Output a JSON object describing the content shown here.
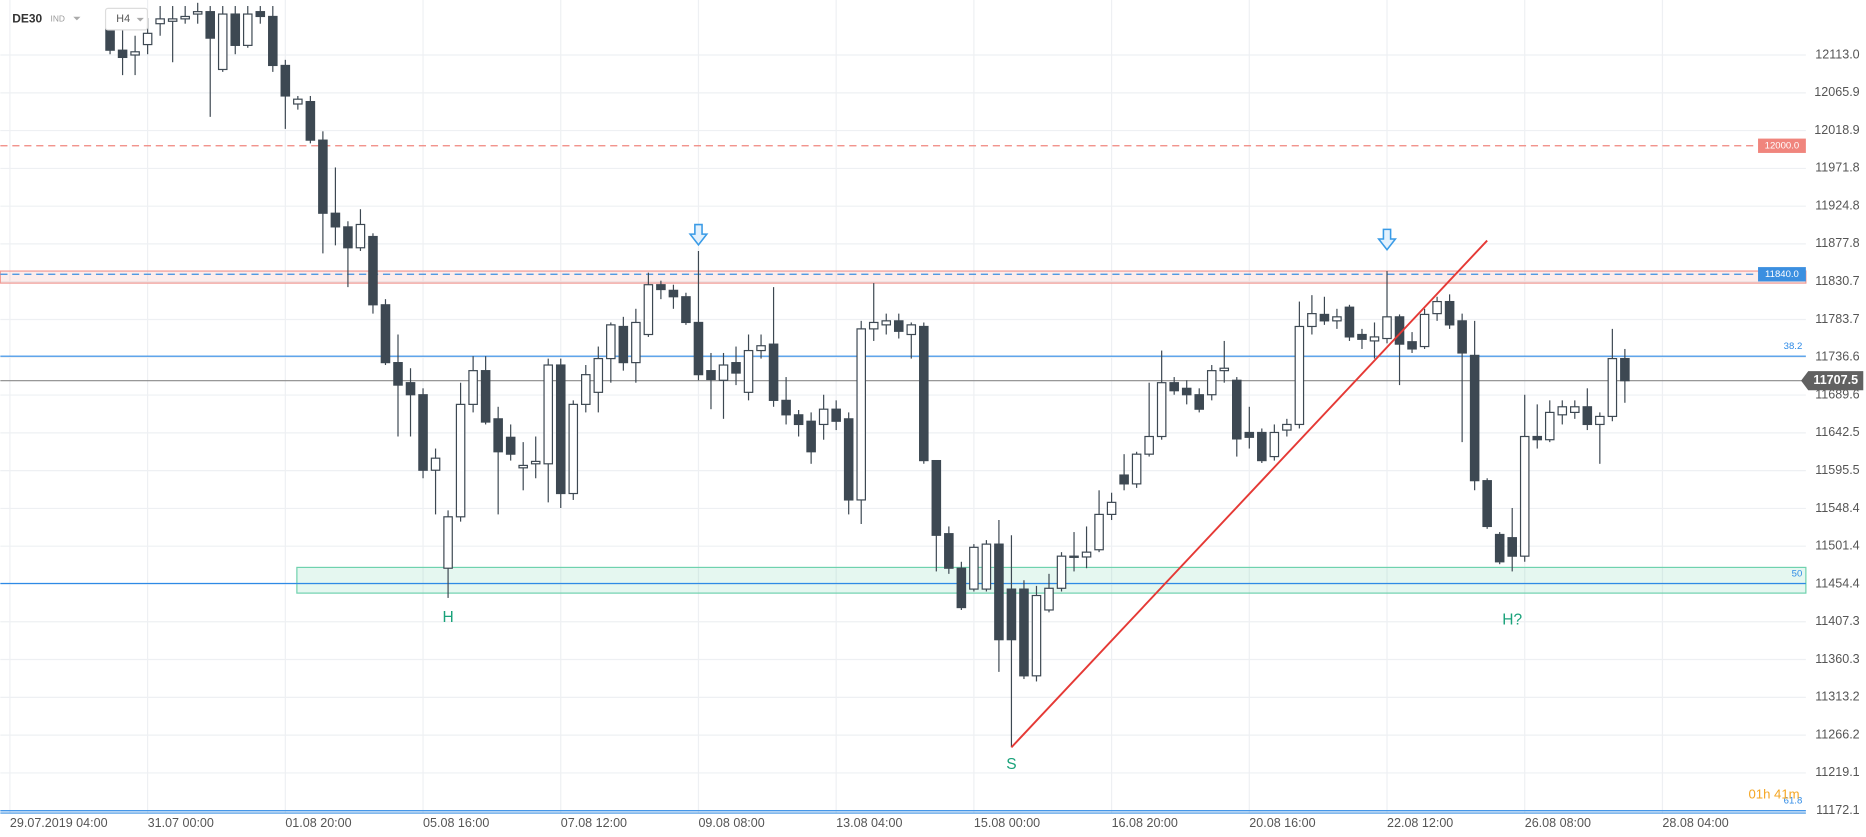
{
  "chart_data": {
    "type": "candlestick",
    "symbol": "DE30",
    "instrument_type": "IND",
    "timeframe": "H4",
    "up_color": "#ffffff",
    "down_color": "#3d4852",
    "grid": true,
    "categories": [
      "29.07.2019 04:00",
      null,
      null,
      null,
      null,
      null,
      null,
      null,
      null,
      null,
      null,
      "31.07 00:00",
      null,
      null,
      null,
      null,
      null,
      null,
      null,
      null,
      null,
      null,
      "01.08 20:00",
      null,
      null,
      null,
      null,
      null,
      null,
      null,
      null,
      null,
      null,
      "05.08 16:00",
      null,
      null,
      null,
      null,
      null,
      null,
      null,
      null,
      null,
      null,
      "07.08 12:00",
      null,
      null,
      null,
      null,
      null,
      null,
      null,
      null,
      null,
      null,
      "09.08 08:00",
      null,
      null,
      null,
      null,
      null,
      null,
      null,
      null,
      null,
      null,
      "13.08 04:00",
      null,
      null,
      null,
      null,
      null,
      null,
      null,
      null,
      null,
      null,
      "15.08 00:00",
      null,
      null,
      null,
      null,
      null,
      null,
      null,
      null,
      null,
      null,
      "16.08 20:00",
      null,
      null,
      null,
      null,
      null,
      null,
      null,
      null,
      null,
      null,
      "20.08 16:00",
      null,
      null,
      null,
      null,
      null,
      null,
      null,
      null,
      null,
      null,
      "22.08 12:00",
      null,
      null,
      null,
      null,
      null,
      null,
      null,
      null,
      null,
      null,
      "26.08 08:00",
      null,
      null,
      null,
      null,
      null,
      null,
      null,
      null,
      null,
      null,
      "28.08 04:00"
    ],
    "open": [
      null,
      null,
      null,
      null,
      null,
      null,
      null,
      null,
      12159,
      12119,
      12113,
      12126,
      12152,
      12155,
      12158,
      12164,
      12167,
      12095,
      12164,
      12125,
      12167,
      12161,
      12100,
      12052,
      12055,
      12007,
      11916,
      11899,
      11873,
      11887,
      11802,
      11730,
      11705,
      11690,
      11596,
      11474,
      11538,
      11678,
      11720,
      11660,
      11637,
      11599,
      11604,
      11604,
      11727,
      11567,
      11678,
      11693,
      11735,
      11775,
      11730,
      11765,
      11827,
      11820,
      11812,
      11780,
      11720,
      11708,
      11730,
      11693,
      11745,
      11753,
      11683,
      11665,
      11657,
      11653,
      11672,
      11660,
      11559,
      11772,
      11777,
      11782,
      11765,
      11775,
      11608,
      11517,
      11474,
      11448,
      11448,
      11504,
      11448,
      11448,
      11340,
      11422,
      11449,
      11489,
      11488,
      11497,
      11541,
      11590,
      11579,
      11616,
      11638,
      11705,
      11698,
      11690,
      11690,
      11720,
      11708,
      11643,
      11643,
      11613,
      11646,
      11653,
      11775,
      11790,
      11782,
      11799,
      11765,
      11757,
      11760,
      11787,
      11756,
      11750,
      11791,
      11806,
      11782,
      11739,
      11583,
      11516,
      11512,
      11489,
      11638,
      11634,
      11665,
      11668,
      11675,
      11653,
      11663,
      11735,
      null,
      null,
      null
    ],
    "high": [
      null,
      null,
      null,
      null,
      null,
      null,
      null,
      null,
      12167,
      12159,
      12137,
      12159,
      12174,
      12174,
      12174,
      12178,
      12174,
      12174,
      12174,
      12174,
      12174,
      12174,
      12107,
      12062,
      12062,
      12018,
      11973,
      11906,
      11921,
      11891,
      11809,
      11765,
      11723,
      11698,
      11623,
      11546,
      11705,
      11738,
      11738,
      11675,
      11653,
      11631,
      11638,
      11735,
      11735,
      11683,
      11727,
      11750,
      11780,
      11787,
      11797,
      11842,
      11832,
      11827,
      11817,
      11869,
      11742,
      11742,
      11750,
      11765,
      11765,
      11824,
      11712,
      11671,
      11668,
      11690,
      11683,
      11668,
      11782,
      11829,
      11791,
      11791,
      11780,
      11780,
      11608,
      11526,
      11482,
      11504,
      11509,
      11534,
      11515,
      11459,
      11452,
      11467,
      11494,
      11519,
      11526,
      11571,
      11568,
      11616,
      11619,
      11705,
      11745,
      11712,
      11708,
      11698,
      11727,
      11757,
      11712,
      11675,
      11648,
      11653,
      11660,
      11806,
      11814,
      11812,
      11797,
      11802,
      11772,
      11780,
      11844,
      11790,
      11768,
      11797,
      11812,
      11815,
      11791,
      11782,
      11586,
      11519,
      11549,
      11690,
      11678,
      11683,
      11683,
      11683,
      11698,
      11668,
      11772,
      11747,
      null,
      null,
      null
    ],
    "low": [
      null,
      null,
      null,
      null,
      null,
      null,
      null,
      null,
      12114,
      12088,
      12088,
      12114,
      12137,
      12104,
      12152,
      12152,
      12036,
      12092,
      12114,
      12122,
      12152,
      12092,
      12021,
      12045,
      12003,
      11866,
      11876,
      11824,
      11869,
      11791,
      11727,
      11638,
      11638,
      11586,
      11541,
      11437,
      11532,
      11668,
      11653,
      11541,
      11608,
      11571,
      11586,
      11556,
      11549,
      11559,
      11668,
      11668,
      11705,
      11720,
      11705,
      11762,
      11809,
      11797,
      11777,
      11708,
      11672,
      11660,
      11702,
      11683,
      11735,
      11675,
      11653,
      11638,
      11604,
      11634,
      11646,
      11541,
      11529,
      11757,
      11765,
      11760,
      11735,
      11604,
      11470,
      11467,
      11422,
      11445,
      11445,
      11345,
      11251,
      11336,
      11333,
      11419,
      11445,
      11470,
      11474,
      11494,
      11534,
      11571,
      11574,
      11613,
      11634,
      11690,
      11678,
      11668,
      11683,
      11705,
      11613,
      11623,
      11605,
      11608,
      11638,
      11648,
      11765,
      11777,
      11772,
      11757,
      11747,
      11735,
      11754,
      11702,
      11742,
      11747,
      11782,
      11772,
      11631,
      11571,
      11523,
      11479,
      11470,
      11482,
      11623,
      11631,
      11653,
      11660,
      11646,
      11604,
      11657,
      11680,
      null,
      null,
      null
    ],
    "close": [
      null,
      null,
      null,
      null,
      null,
      null,
      null,
      null,
      12119,
      12110,
      12117,
      12140,
      12158,
      12158,
      12161,
      12167,
      12134,
      12164,
      12125,
      12164,
      12161,
      12100,
      12062,
      12058,
      12007,
      11916,
      11899,
      11873,
      11902,
      11802,
      11730,
      11702,
      11690,
      11596,
      11611,
      11538,
      11678,
      11720,
      11656,
      11619,
      11616,
      11602,
      11607,
      11727,
      11567,
      11678,
      11715,
      11735,
      11777,
      11730,
      11780,
      11827,
      11821,
      11812,
      11780,
      11715,
      11709,
      11727,
      11717,
      11745,
      11751,
      11683,
      11665,
      11653,
      11619,
      11672,
      11657,
      11559,
      11772,
      11780,
      11782,
      11769,
      11777,
      11608,
      11515,
      11474,
      11425,
      11500,
      11504,
      11385,
      11385,
      11340,
      11440,
      11449,
      11489,
      11488,
      11494,
      11541,
      11556,
      11579,
      11616,
      11638,
      11705,
      11695,
      11690,
      11672,
      11720,
      11723,
      11635,
      11637,
      11608,
      11643,
      11653,
      11775,
      11791,
      11782,
      11787,
      11762,
      11759,
      11762,
      11787,
      11753,
      11747,
      11790,
      11806,
      11777,
      11742,
      11583,
      11526,
      11482,
      11489,
      11638,
      11634,
      11668,
      11675,
      11675,
      11653,
      11663,
      11735,
      11707.5,
      null,
      null,
      null
    ],
    "ylim": [
      11169.1,
      12181.5
    ],
    "yticks": [
      {
        "value": 12113,
        "label": "12113.0"
      },
      12065.9,
      12018.9,
      11971.8,
      11924.8,
      11877.8,
      11830.7,
      11783.7,
      11736.6,
      11689.6,
      11642.5,
      11595.5,
      11548.4,
      11501.4,
      11454.4,
      11407.3,
      11360.3,
      11313.2,
      11266.2,
      11219.1,
      11172.1
    ],
    "last_price": 11707.5,
    "price_lines": [
      {
        "value": 12000,
        "label": "12000.0",
        "color": "#f0857d"
      },
      {
        "value": 11840,
        "label": "11840.0",
        "color": "#3b8fe0"
      }
    ],
    "zones": [
      {
        "from": 11829,
        "to": 11844,
        "color": "#f19a93"
      },
      {
        "from": 11443,
        "to": 11475,
        "color": "#6fd2ae"
      }
    ],
    "fib_levels": [
      {
        "level": 38.2,
        "price": 11738
      },
      {
        "level": 50.0,
        "price": 11455
      },
      {
        "level": 61.8,
        "price": 11172
      }
    ],
    "trendline": {
      "x": [
        80,
        118
      ],
      "y": [
        11251,
        11882
      ],
      "color": "#e53935"
    },
    "arrows": [
      {
        "x": 55,
        "y": 11884
      },
      {
        "x": 110,
        "y": 11878
      }
    ],
    "annotations": [
      {
        "text": "H",
        "x": 35,
        "y": 11412
      },
      {
        "text": "S",
        "x": 80,
        "y": 11229
      },
      {
        "text": "H?",
        "x": 120,
        "y": 11409
      }
    ],
    "timer": "01h 41m"
  }
}
